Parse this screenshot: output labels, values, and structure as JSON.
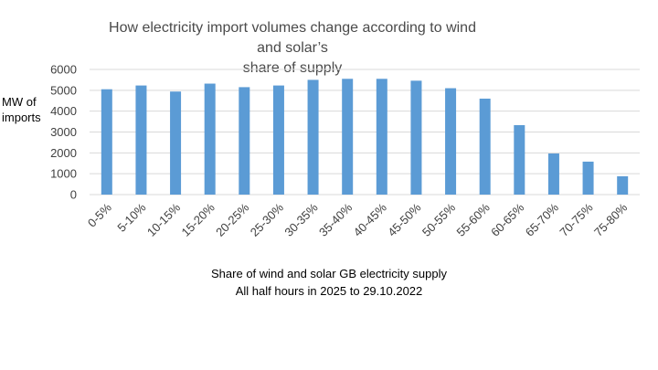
{
  "chart_data": {
    "type": "bar",
    "title": "How electricity import volumes change according to wind and solar’s share of supply",
    "title_lines": [
      "How electricity import volumes change according to wind and solar’s",
      "share of supply"
    ],
    "ylabel_lines": [
      "MW of",
      "imports"
    ],
    "xlabel_lines": [
      "Share of wind and solar GB electricity supply",
      "All half hours in 2025 to 29.10.2022"
    ],
    "categories": [
      "0-5%",
      "5-10%",
      "10-15%",
      "15-20%",
      "20-25%",
      "25-30%",
      "30-35%",
      "35-40%",
      "40-45%",
      "45-50%",
      "50-55%",
      "55-60%",
      "60-65%",
      "65-70%",
      "70-75%",
      "75-80%"
    ],
    "values": [
      5050,
      5230,
      4940,
      5320,
      5150,
      5230,
      5500,
      5550,
      5550,
      5460,
      5100,
      4600,
      3330,
      1970,
      1580,
      880
    ],
    "ylim": [
      0,
      6000
    ],
    "yticks": [
      0,
      1000,
      2000,
      3000,
      4000,
      5000,
      6000
    ],
    "grid": true,
    "bar_color": "#5b9bd5",
    "grid_color": "#d9d9d9"
  }
}
